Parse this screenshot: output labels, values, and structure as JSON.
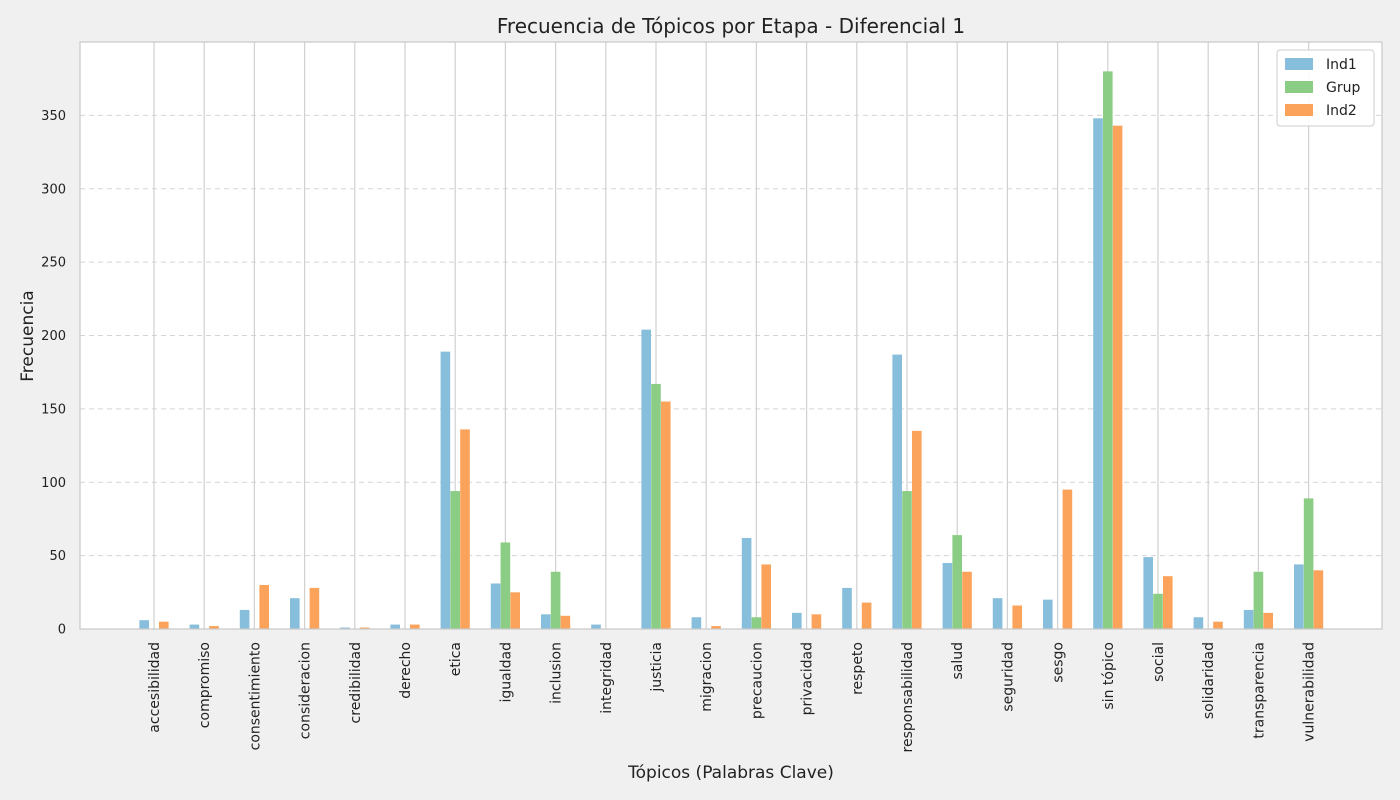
{
  "chart_data": {
    "type": "bar",
    "title": "Frecuencia de Tópicos por Etapa - Diferencial 1",
    "xlabel": "Tópicos (Palabras Clave)",
    "ylabel": "Frecuencia",
    "ylim": [
      0,
      400
    ],
    "yticks": [
      0,
      50,
      100,
      150,
      200,
      250,
      300,
      350
    ],
    "grid": {
      "x": true,
      "y": true,
      "y_style": "dashed"
    },
    "legend_position": "top-right",
    "categories": [
      "accesibilidad",
      "compromiso",
      "consentimiento",
      "consideracion",
      "credibilidad",
      "derecho",
      "etica",
      "igualdad",
      "inclusion",
      "integridad",
      "justicia",
      "migracion",
      "precaucion",
      "privacidad",
      "respeto",
      "responsabilidad",
      "salud",
      "seguridad",
      "sesgo",
      "sin tópico",
      "social",
      "solidaridad",
      "transparencia",
      "vulnerabilidad"
    ],
    "series": [
      {
        "name": "Ind1",
        "color": "#87bedb",
        "values": [
          6,
          3,
          13,
          21,
          1,
          3,
          189,
          31,
          10,
          3,
          204,
          8,
          62,
          11,
          28,
          187,
          45,
          21,
          20,
          348,
          49,
          8,
          13,
          44
        ]
      },
      {
        "name": "Grup",
        "color": "#8ccd85",
        "values": [
          0,
          0,
          0,
          0,
          0,
          0,
          94,
          59,
          39,
          0,
          167,
          0,
          8,
          0,
          0,
          94,
          64,
          0,
          0,
          380,
          24,
          0,
          39,
          89
        ]
      },
      {
        "name": "Ind2",
        "color": "#fba35b",
        "values": [
          5,
          2,
          30,
          28,
          1,
          3,
          136,
          25,
          9,
          0,
          155,
          2,
          44,
          10,
          18,
          135,
          39,
          16,
          95,
          343,
          36,
          5,
          11,
          40
        ]
      }
    ]
  }
}
